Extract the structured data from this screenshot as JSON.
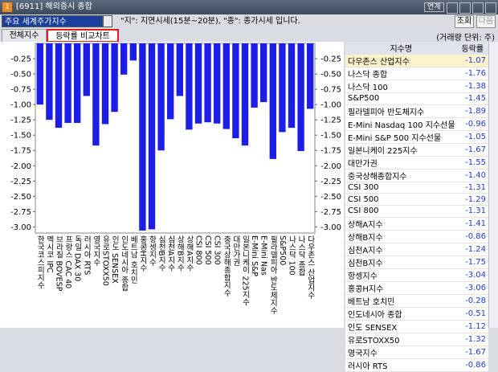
{
  "header": {
    "badge": "1",
    "title": "[6911] 해외증시 종합",
    "link_button": "연계"
  },
  "toolbar": {
    "dropdown": "주요 세계주가지수",
    "notice": "\"지\": 지연시세(15분~20분), \"종\": 종가시세 입니다.",
    "buttons": [
      "조회",
      "다음"
    ]
  },
  "tabs": [
    "전체지수",
    "등락률 비교차트"
  ],
  "unit_note": "(거래량 단위: 주)",
  "table": {
    "columns": [
      "지수명",
      "등락률"
    ],
    "rows": [
      [
        "다우존스 산업지수",
        "-1.07"
      ],
      [
        "나스닥 종합",
        "-1.76"
      ],
      [
        "나스닥 100",
        "-1.38"
      ],
      [
        "S&P500",
        "-1.45"
      ],
      [
        "필라델피아 반도체지수",
        "-1.89"
      ],
      [
        "E-Mini Nasdaq 100 지수선물",
        "-0.96"
      ],
      [
        "E-Mini S&P 500 지수선물",
        "-1.05"
      ],
      [
        "일본니케이 225지수",
        "-1.67"
      ],
      [
        "대만가권",
        "-1.55"
      ],
      [
        "중국상해종합지수",
        "-1.40"
      ],
      [
        "CSI 300",
        "-1.31"
      ],
      [
        "CSI 500",
        "-1.29"
      ],
      [
        "CSI 800",
        "-1.31"
      ],
      [
        "상해A지수",
        "-1.41"
      ],
      [
        "상해B지수",
        "-0.86"
      ],
      [
        "심천A지수",
        "-1.24"
      ],
      [
        "심천B지수",
        "-1.75"
      ],
      [
        "항셍지수",
        "-3.04"
      ],
      [
        "홍콩H지수",
        "-3.06"
      ],
      [
        "베트남 호치민",
        "-0.28"
      ],
      [
        "인도네시아 종합",
        "-0.51"
      ],
      [
        "인도 SENSEX",
        "-1.12"
      ],
      [
        "유로STOXX50",
        "-1.32"
      ],
      [
        "영국지수",
        "-1.67"
      ],
      [
        "러시아 RTS",
        "-0.86"
      ]
    ]
  },
  "chart_data": {
    "type": "bar",
    "color": "#1c1ee8",
    "categories": [
      "한국코스피지수",
      "멕시코 IPC",
      "브라질 BOVESP",
      "프랑스 CAC 40",
      "독일 DAX 30",
      "러시아 RTS",
      "영국지수",
      "유로STOXX50",
      "인도 SENSEX",
      "인도네시아 종합",
      "베트남 호치민",
      "홍콩H지수",
      "항셍지수",
      "심천B지수",
      "심천A지수",
      "상해B지수",
      "상해A지수",
      "CSI 800",
      "CSI 500",
      "CSI 300",
      "중국상해종합지수",
      "대만가권",
      "일본니케이 225지수",
      "E-Mini S&P",
      "E-Mini Nas",
      "필라델피아 반도체지수",
      "S&P500",
      "나스닥 100",
      "나스닥 종합",
      "다우존스 산업지수"
    ],
    "values": [
      -1.0,
      -1.25,
      -1.38,
      -1.3,
      -1.3,
      -0.86,
      -1.67,
      -1.32,
      -1.12,
      -0.51,
      -0.28,
      -3.06,
      -3.04,
      -1.75,
      -1.24,
      -0.86,
      -1.41,
      -1.31,
      -1.29,
      -1.31,
      -1.4,
      -1.55,
      -1.67,
      -1.05,
      -0.96,
      -1.89,
      -1.45,
      -1.38,
      -1.76,
      -1.07
    ],
    "ylim": [
      0,
      -3.1
    ],
    "yticks": [
      -0.25,
      {
        "value": -0.5,
        "label": "-0.50"
      },
      -0.75,
      {
        "value": -1,
        "label": "-1.00"
      },
      -1.25,
      {
        "value": -1.5,
        "label": "-1.50"
      },
      -1.75,
      {
        "value": -2,
        "label": "-2.00"
      },
      -2.25,
      {
        "value": -2.5,
        "label": "-2.50"
      },
      -2.75,
      {
        "value": -3,
        "label": "-3.00"
      }
    ]
  }
}
